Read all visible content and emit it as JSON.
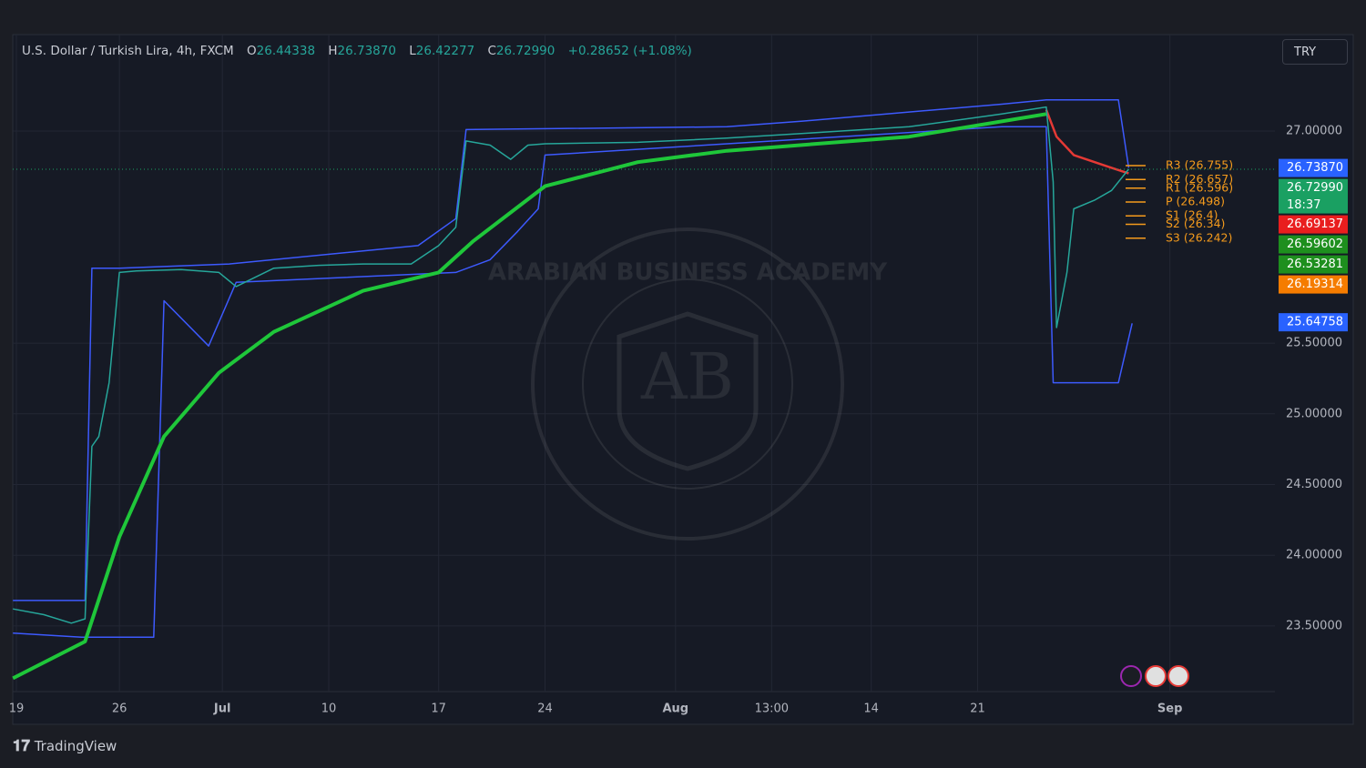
{
  "header": {
    "symbol": "U.S. Dollar / Turkish Lira, 4h, FXCM",
    "ohlc": [
      {
        "key": "O",
        "value": "26.44338"
      },
      {
        "key": "H",
        "value": "26.73870"
      },
      {
        "key": "L",
        "value": "26.42277"
      },
      {
        "key": "C",
        "value": "26.72990"
      }
    ],
    "change": "+0.28652 (+1.08%)",
    "currency_button": "TRY"
  },
  "watermark": {
    "text": "ARABIAN BUSINESS ACADEMY",
    "monogram": "AB"
  },
  "footer": {
    "brand": "TradingView"
  },
  "chart_data": {
    "type": "line",
    "grid": true,
    "xlim": [
      -1.06,
      366.6
    ],
    "ylim": [
      23.036,
      27.682
    ],
    "xticks": [
      {
        "value": 0,
        "label": "19"
      },
      {
        "value": 30,
        "label": "26"
      },
      {
        "value": 60,
        "label": "Jul"
      },
      {
        "value": 91,
        "label": "10"
      },
      {
        "value": 123,
        "label": "17"
      },
      {
        "value": 154,
        "label": "24"
      },
      {
        "value": 192,
        "label": "Aug"
      },
      {
        "value": 220,
        "label": "13:00"
      },
      {
        "value": 249,
        "label": "14"
      },
      {
        "value": 280,
        "label": "21"
      },
      {
        "value": 336,
        "label": "Sep"
      }
    ],
    "yticks": [
      {
        "value": 23.5,
        "label": "23.50000"
      },
      {
        "value": 24,
        "label": "24.00000"
      },
      {
        "value": 24.5,
        "label": "24.50000"
      },
      {
        "value": 25,
        "label": "25.00000"
      },
      {
        "value": 25.5,
        "label": "25.50000"
      },
      {
        "value": 27,
        "label": "27.00000"
      }
    ],
    "series": [
      {
        "color": "#3d5afe",
        "width": 1.5,
        "x": [
          -1,
          20,
          22,
          30,
          62,
          117,
          128,
          131,
          207,
          229,
          287,
          300,
          321,
          324
        ],
        "values": [
          23.68,
          23.68,
          26.03,
          26.03,
          26.06,
          26.19,
          26.38,
          27.01,
          27.03,
          27.07,
          27.19,
          27.22,
          27.22,
          26.74
        ]
      },
      {
        "color": "#3d5afe",
        "width": 1.5,
        "x": [
          -1,
          19,
          40,
          43,
          56,
          64,
          128,
          138,
          146,
          152,
          154,
          287,
          300,
          302,
          321,
          325
        ],
        "values": [
          23.45,
          23.42,
          23.42,
          25.8,
          25.48,
          25.93,
          26.0,
          26.09,
          26.29,
          26.45,
          26.83,
          27.03,
          27.03,
          25.22,
          25.22,
          25.64
        ]
      },
      {
        "color": "#1fc73a",
        "width": 4,
        "x": [
          -1,
          20,
          30,
          43,
          59,
          75,
          101,
          123,
          133,
          154,
          181,
          207,
          260,
          300
        ],
        "values": [
          23.13,
          23.39,
          24.13,
          24.84,
          25.29,
          25.58,
          25.87,
          26.0,
          26.22,
          26.61,
          26.78,
          26.86,
          26.96,
          27.12
        ]
      },
      {
        "color": "#e53935",
        "width": 2.5,
        "x": [
          300,
          303,
          308,
          319,
          324
        ],
        "values": [
          27.15,
          26.96,
          26.83,
          26.74,
          26.7
        ]
      },
      {
        "color": "#26a69a",
        "width": 1.5,
        "x": [
          -1,
          8,
          16,
          20,
          22,
          24,
          27,
          30,
          35,
          48,
          59,
          64,
          75,
          88,
          101,
          115,
          123,
          128,
          131,
          138,
          144,
          149,
          154,
          181,
          207,
          234,
          260,
          287,
          300,
          302,
          303,
          306,
          308,
          314,
          319,
          324
        ],
        "values": [
          23.62,
          23.58,
          23.52,
          23.55,
          24.77,
          24.84,
          25.22,
          26.0,
          26.01,
          26.02,
          26.0,
          25.9,
          26.03,
          26.05,
          26.06,
          26.06,
          26.19,
          26.32,
          26.93,
          26.9,
          26.8,
          26.9,
          26.91,
          26.92,
          26.95,
          26.99,
          27.03,
          27.12,
          27.17,
          26.64,
          25.61,
          26.0,
          26.45,
          26.51,
          26.58,
          26.73
        ]
      }
    ],
    "pivots": {
      "color": "#f59b1c",
      "values": [
        26.755,
        26.657,
        26.596,
        26.498,
        26.4,
        26.34,
        26.242
      ],
      "value_labels": [
        "R3 (26.755)",
        "R2 (26.657)",
        "R1 (26.596)",
        "P (26.498)",
        "S1 (26.4)",
        "S2 (26.34)",
        "S3 (26.242)"
      ]
    },
    "price_tags": {
      "values": [
        26.7387,
        26.7299,
        26.69137,
        26.59602,
        26.53281,
        26.19314,
        25.64758
      ],
      "value_labels": [
        "26.73870",
        "26.72990",
        "26.69137",
        "26.59602",
        "26.53281",
        "26.19314",
        "25.64758"
      ],
      "colors": [
        "#2962ff",
        "#1aa062",
        "#e91e1e",
        "#1e8f1e",
        "#1e8f1e",
        "#f57c00",
        "#2962ff"
      ],
      "countdown": "18:37"
    }
  }
}
